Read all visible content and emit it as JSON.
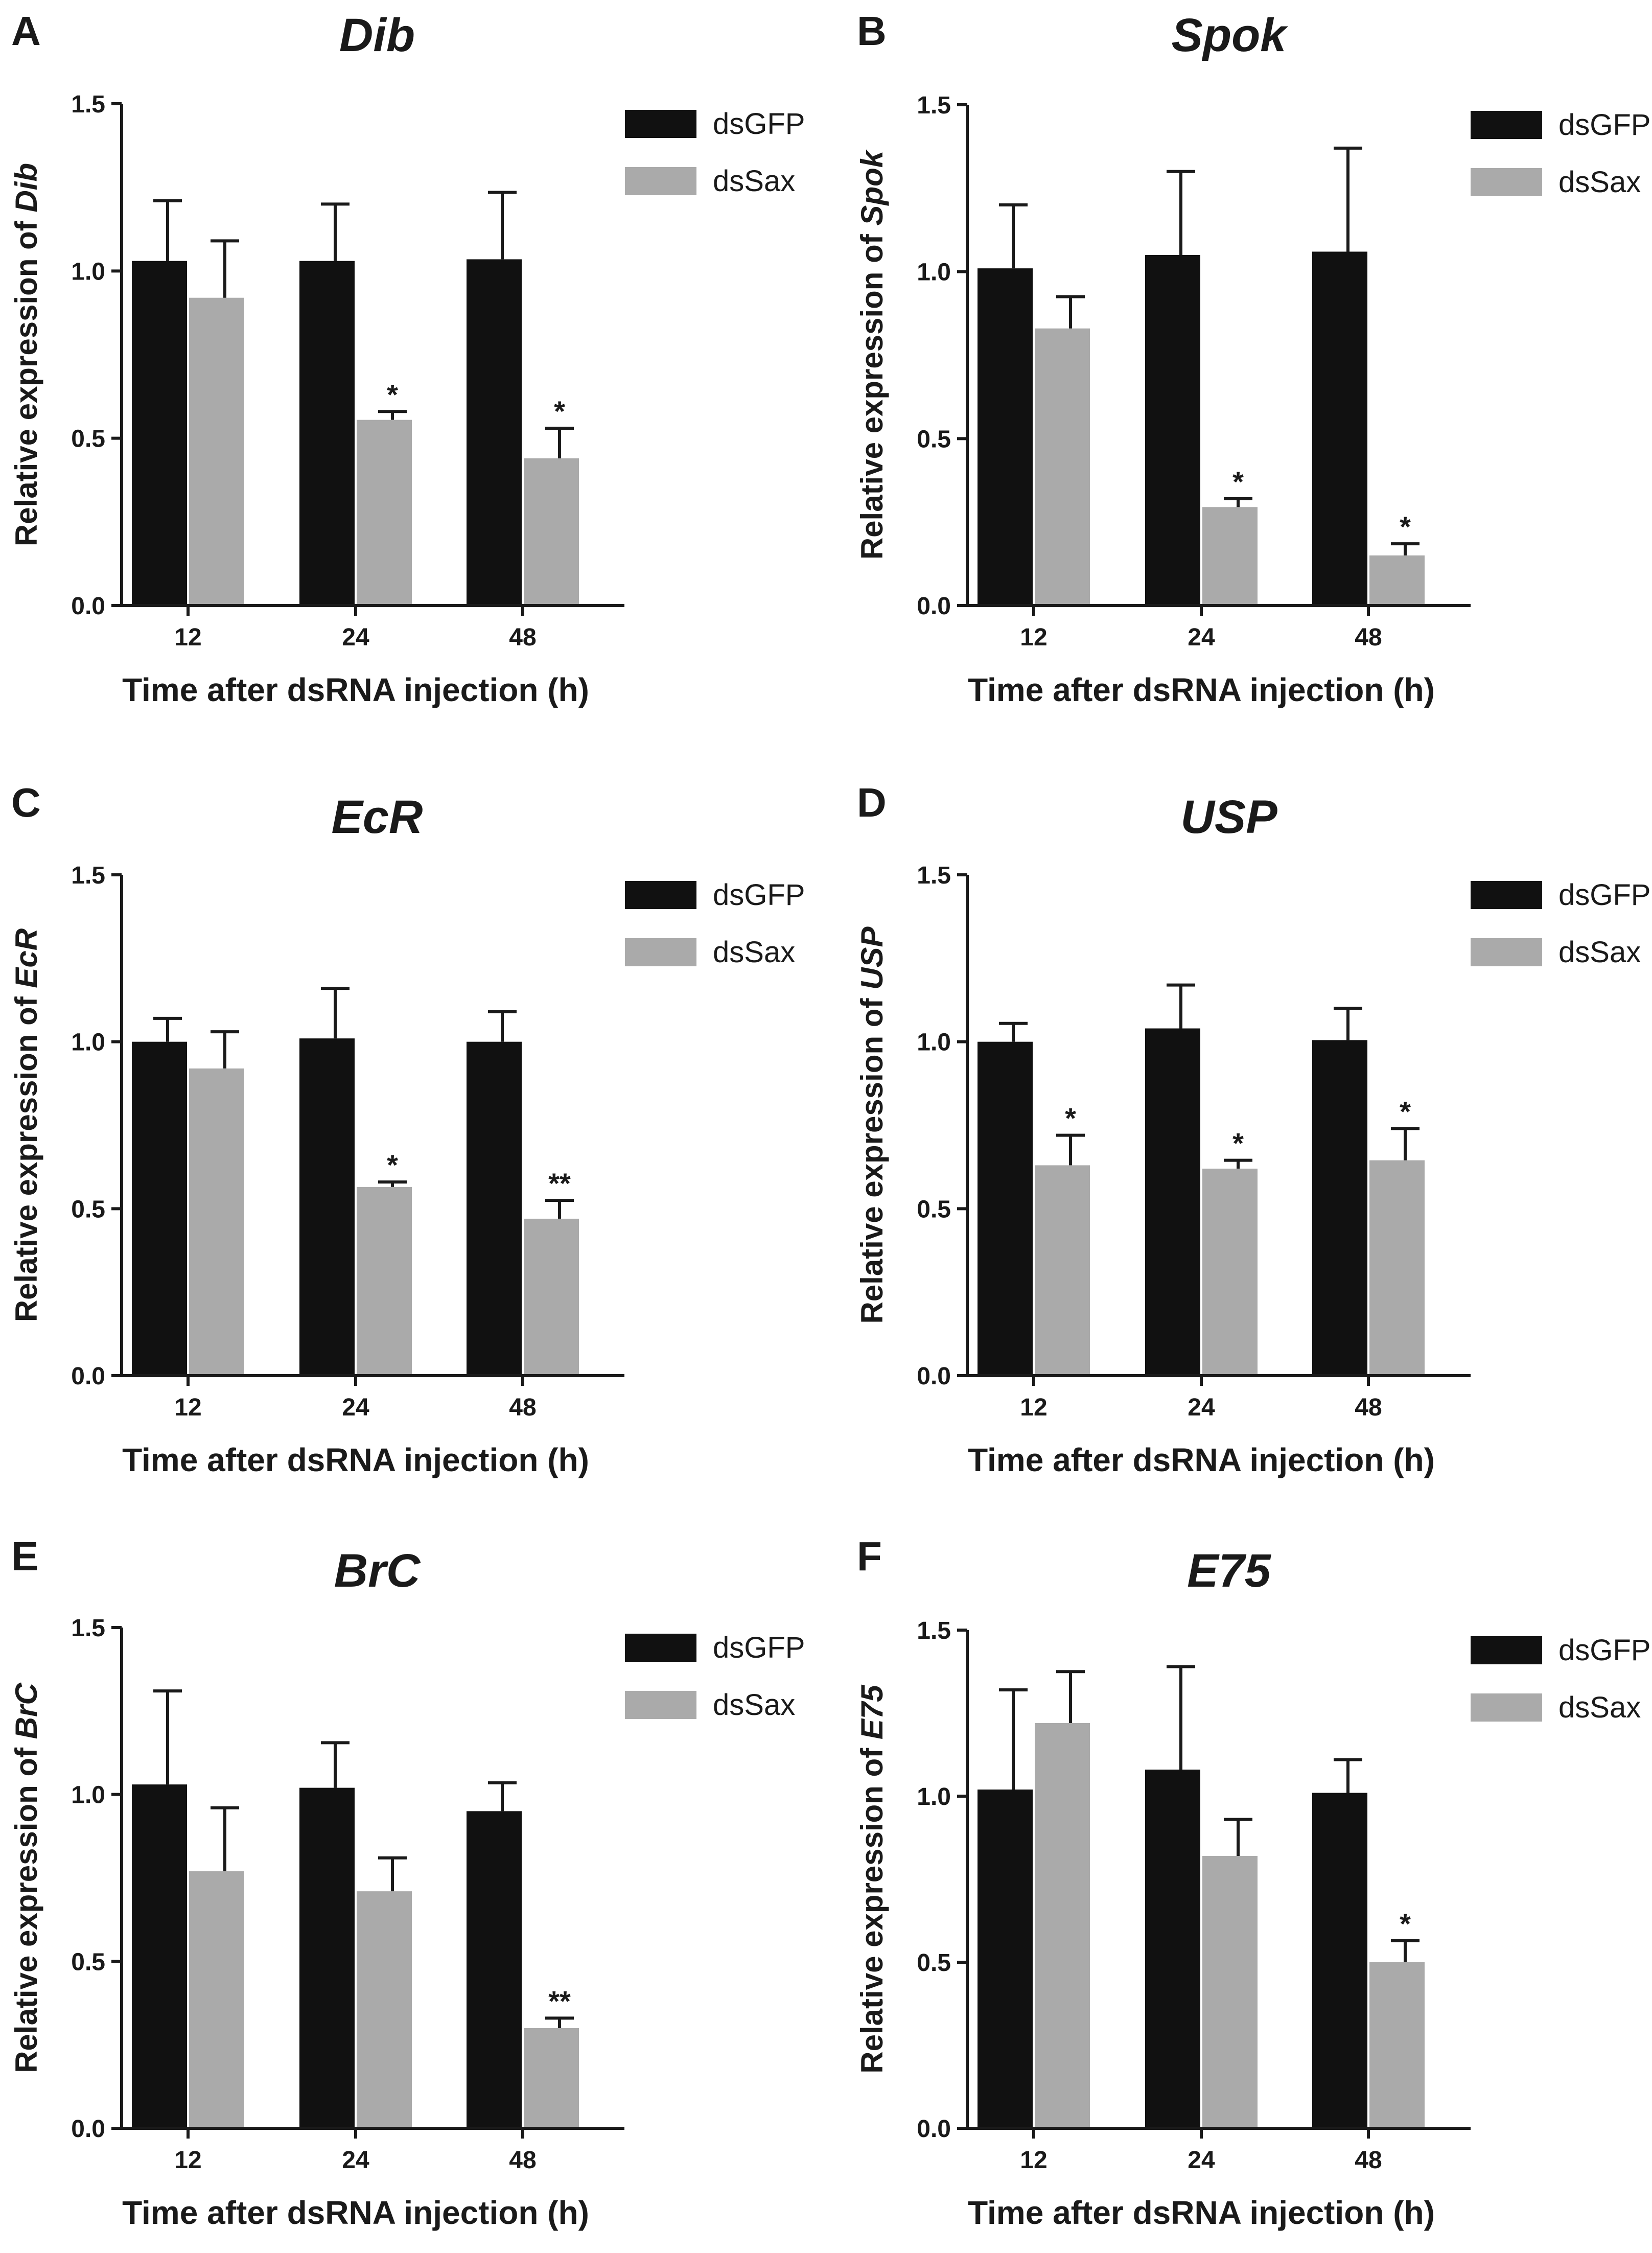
{
  "figure": {
    "legend_labels": [
      "dsGFP",
      "dsSax"
    ],
    "colors": {
      "dsGFP": "#111111",
      "dsSax": "#aaaaaa",
      "ink": "#1a1a1a"
    }
  },
  "chart_data": [
    {
      "panel": "A",
      "type": "bar",
      "title": "Dib",
      "ylabel_prefix": "Relative expression of ",
      "ylabel_gene": "Dib",
      "xlabel": "Time after dsRNA injection (h)",
      "categories": [
        "12",
        "24",
        "48"
      ],
      "ylim": [
        0,
        1.5
      ],
      "yticks": [
        "0.0",
        "0.5",
        "1.0",
        "1.5"
      ],
      "ytick_values": [
        0,
        0.5,
        1.0,
        1.5
      ],
      "legend": [
        "dsGFP",
        "dsSax"
      ],
      "legend_position": "top-right",
      "series": [
        {
          "name": "dsGFP",
          "values": [
            1.03,
            1.03,
            1.035
          ],
          "errors": [
            0.18,
            0.17,
            0.2
          ],
          "sig": [
            "",
            "",
            ""
          ]
        },
        {
          "name": "dsSax",
          "values": [
            0.92,
            0.555,
            0.44
          ],
          "errors": [
            0.17,
            0.025,
            0.09
          ],
          "sig": [
            "",
            "*",
            "*"
          ]
        }
      ]
    },
    {
      "panel": "B",
      "type": "bar",
      "title": "Spok",
      "ylabel_prefix": "Relative expression of ",
      "ylabel_gene": "Spok",
      "xlabel": "Time after dsRNA injection (h)",
      "categories": [
        "12",
        "24",
        "48"
      ],
      "ylim": [
        0,
        1.5
      ],
      "yticks": [
        "0.0",
        "0.5",
        "1.0",
        "1.5"
      ],
      "ytick_values": [
        0,
        0.5,
        1.0,
        1.5
      ],
      "legend": [
        "dsGFP",
        "dsSax"
      ],
      "legend_position": "top-right",
      "series": [
        {
          "name": "dsGFP",
          "values": [
            1.01,
            1.05,
            1.06
          ],
          "errors": [
            0.19,
            0.25,
            0.31
          ],
          "sig": [
            "",
            "",
            ""
          ]
        },
        {
          "name": "dsSax",
          "values": [
            0.83,
            0.295,
            0.15
          ],
          "errors": [
            0.095,
            0.025,
            0.035
          ],
          "sig": [
            "",
            "*",
            "*"
          ]
        }
      ]
    },
    {
      "panel": "C",
      "type": "bar",
      "title": "EcR",
      "ylabel_prefix": "Relative expression of ",
      "ylabel_gene": "EcR",
      "xlabel": "Time after dsRNA injection (h)",
      "categories": [
        "12",
        "24",
        "48"
      ],
      "ylim": [
        0,
        1.5
      ],
      "yticks": [
        "0.0",
        "0.5",
        "1.0",
        "1.5"
      ],
      "ytick_values": [
        0,
        0.5,
        1.0,
        1.5
      ],
      "legend": [
        "dsGFP",
        "dsSax"
      ],
      "legend_position": "top-right",
      "series": [
        {
          "name": "dsGFP",
          "values": [
            1.0,
            1.01,
            1.0
          ],
          "errors": [
            0.07,
            0.15,
            0.09
          ],
          "sig": [
            "",
            "",
            ""
          ]
        },
        {
          "name": "dsSax",
          "values": [
            0.92,
            0.565,
            0.47
          ],
          "errors": [
            0.11,
            0.015,
            0.055
          ],
          "sig": [
            "",
            "*",
            "**"
          ]
        }
      ]
    },
    {
      "panel": "D",
      "type": "bar",
      "title": "USP",
      "ylabel_prefix": "Relative expression of ",
      "ylabel_gene": "USP",
      "xlabel": "Time after dsRNA injection (h)",
      "categories": [
        "12",
        "24",
        "48"
      ],
      "ylim": [
        0,
        1.5
      ],
      "yticks": [
        "0.0",
        "0.5",
        "1.0",
        "1.5"
      ],
      "ytick_values": [
        0,
        0.5,
        1.0,
        1.5
      ],
      "legend": [
        "dsGFP",
        "dsSax"
      ],
      "legend_position": "top-right",
      "series": [
        {
          "name": "dsGFP",
          "values": [
            1.0,
            1.04,
            1.005
          ],
          "errors": [
            0.055,
            0.13,
            0.095
          ],
          "sig": [
            "",
            "",
            ""
          ]
        },
        {
          "name": "dsSax",
          "values": [
            0.63,
            0.62,
            0.645
          ],
          "errors": [
            0.09,
            0.025,
            0.095
          ],
          "sig": [
            "*",
            "*",
            "*"
          ]
        }
      ]
    },
    {
      "panel": "E",
      "type": "bar",
      "title": "BrC",
      "ylabel_prefix": "Relative expression of ",
      "ylabel_gene": "BrC",
      "xlabel": "Time after dsRNA injection (h)",
      "categories": [
        "12",
        "24",
        "48"
      ],
      "ylim": [
        0,
        1.5
      ],
      "yticks": [
        "0.0",
        "0.5",
        "1.0",
        "1.5"
      ],
      "ytick_values": [
        0,
        0.5,
        1.0,
        1.5
      ],
      "legend": [
        "dsGFP",
        "dsSax"
      ],
      "legend_position": "top-right",
      "series": [
        {
          "name": "dsGFP",
          "values": [
            1.03,
            1.02,
            0.95
          ],
          "errors": [
            0.28,
            0.135,
            0.085
          ],
          "sig": [
            "",
            "",
            ""
          ]
        },
        {
          "name": "dsSax",
          "values": [
            0.77,
            0.71,
            0.3
          ],
          "errors": [
            0.19,
            0.1,
            0.03
          ],
          "sig": [
            "",
            "",
            "**"
          ]
        }
      ]
    },
    {
      "panel": "F",
      "type": "bar",
      "title": "E75",
      "ylabel_prefix": "Relative expression of ",
      "ylabel_gene": "E75",
      "xlabel": "Time after dsRNA injection (h)",
      "categories": [
        "12",
        "24",
        "48"
      ],
      "ylim": [
        0,
        1.5
      ],
      "yticks": [
        "0.0",
        "0.5",
        "1.0",
        "1.5"
      ],
      "ytick_values": [
        0,
        0.5,
        1.0,
        1.5
      ],
      "legend": [
        "dsGFP",
        "dsSax"
      ],
      "legend_position": "top-right",
      "series": [
        {
          "name": "dsGFP",
          "values": [
            1.02,
            1.08,
            1.01
          ],
          "errors": [
            0.3,
            0.31,
            0.1
          ],
          "sig": [
            "",
            "",
            ""
          ]
        },
        {
          "name": "dsSax",
          "values": [
            1.22,
            0.82,
            0.5
          ],
          "errors": [
            0.155,
            0.11,
            0.065
          ],
          "sig": [
            "",
            "",
            "*"
          ]
        }
      ]
    }
  ]
}
